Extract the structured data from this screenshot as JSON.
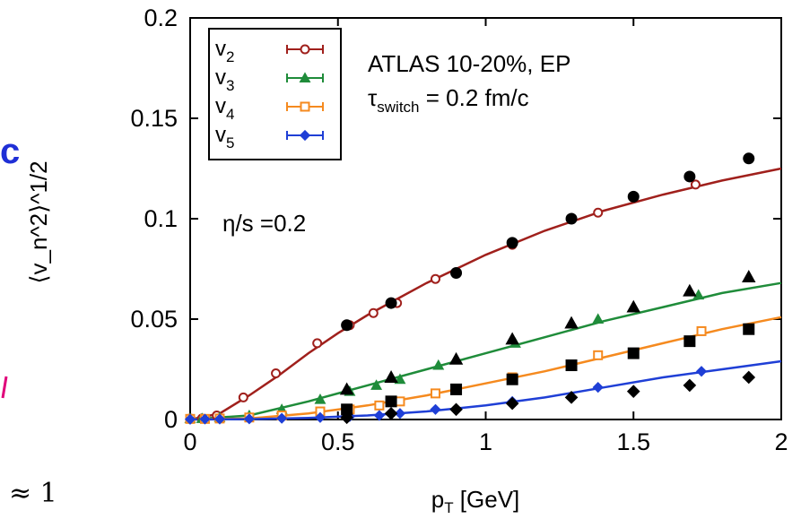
{
  "page": {
    "edge_text_left": "c",
    "edge_text_bottom": "≈ 1",
    "edge_mark_color": "#e0007a",
    "edge_text_color": "#1f2fd6"
  },
  "chart_data": {
    "type": "line",
    "title": "",
    "xlabel": {
      "main": "p",
      "sub": "T",
      "rest": " [GeV]"
    },
    "ylabel": "⟨v_n^2⟩^1/2",
    "xlim": [
      0,
      2
    ],
    "ylim": [
      0,
      0.2
    ],
    "x_ticks": [
      {
        "v": 0,
        "label": "0"
      },
      {
        "v": 0.5,
        "label": "0.5"
      },
      {
        "v": 1,
        "label": "1"
      },
      {
        "v": 1.5,
        "label": "1.5"
      },
      {
        "v": 2,
        "label": "2"
      }
    ],
    "y_ticks": [
      {
        "v": 0,
        "label": "0"
      },
      {
        "v": 0.05,
        "label": "0.05"
      },
      {
        "v": 0.1,
        "label": "0.1"
      },
      {
        "v": 0.15,
        "label": "0.15"
      },
      {
        "v": 0.2,
        "label": "0.2"
      }
    ],
    "grid": false,
    "legend": {
      "placement": "top-left",
      "text_parts": {
        "v2": {
          "main": "v",
          "sub": "2"
        },
        "v3": {
          "main": "v",
          "sub": "3"
        },
        "v4": {
          "main": "v",
          "sub": "4"
        },
        "v5": {
          "main": "v",
          "sub": "5"
        }
      }
    },
    "annotations": {
      "experiment": "ATLAS 10-20%, EP",
      "tau_main": "τ",
      "tau_sub": "switch",
      "tau_rest": " = 0.2 fm/c",
      "viscosity": "η/s =0.2"
    },
    "series": [
      {
        "name": "v2",
        "color": "#a0201c",
        "marker": "circle-open",
        "x": [
          0,
          0.04,
          0.09,
          0.18,
          0.29,
          0.43,
          0.54,
          0.62,
          0.7,
          0.83,
          1.09,
          1.38,
          1.71
        ],
        "y": [
          0.0005,
          0.0005,
          0.002,
          0.011,
          0.023,
          0.038,
          0.047,
          0.053,
          0.058,
          0.07,
          0.087,
          0.103,
          0.117
        ],
        "curve_x": [
          0,
          0.1,
          0.2,
          0.3,
          0.4,
          0.5,
          0.6,
          0.7,
          0.8,
          0.9,
          1.0,
          1.2,
          1.4,
          1.6,
          1.8,
          2.0
        ],
        "curve_y": [
          0.0,
          0.003,
          0.012,
          0.022,
          0.033,
          0.043,
          0.052,
          0.06,
          0.068,
          0.075,
          0.082,
          0.094,
          0.104,
          0.112,
          0.119,
          0.125
        ]
      },
      {
        "name": "v3",
        "color": "#1f8c3a",
        "marker": "triangle-filled",
        "x": [
          0,
          0.04,
          0.1,
          0.2,
          0.31,
          0.44,
          0.54,
          0.63,
          0.71,
          0.84,
          1.1,
          1.38,
          1.72
        ],
        "y": [
          0.0005,
          0.0005,
          0.001,
          0.002,
          0.005,
          0.01,
          0.014,
          0.017,
          0.02,
          0.027,
          0.038,
          0.05,
          0.062
        ],
        "curve_x": [
          0,
          0.2,
          0.4,
          0.6,
          0.8,
          1.0,
          1.2,
          1.4,
          1.6,
          1.8,
          2.0
        ],
        "curve_y": [
          0.0,
          0.002,
          0.009,
          0.017,
          0.025,
          0.033,
          0.041,
          0.049,
          0.056,
          0.063,
          0.068
        ]
      },
      {
        "name": "v4",
        "color": "#f58a1f",
        "marker": "square-open",
        "x": [
          0,
          0.05,
          0.1,
          0.2,
          0.31,
          0.44,
          0.54,
          0.64,
          0.71,
          0.83,
          1.09,
          1.38,
          1.73
        ],
        "y": [
          0.0003,
          0.0003,
          0.0005,
          0.001,
          0.002,
          0.004,
          0.005,
          0.007,
          0.009,
          0.013,
          0.021,
          0.032,
          0.044
        ],
        "curve_x": [
          0,
          0.2,
          0.4,
          0.6,
          0.8,
          1.0,
          1.2,
          1.4,
          1.6,
          1.8,
          2.0
        ],
        "curve_y": [
          0.0,
          0.0005,
          0.003,
          0.007,
          0.012,
          0.018,
          0.024,
          0.031,
          0.038,
          0.045,
          0.051
        ]
      },
      {
        "name": "v5",
        "color": "#1f3fd6",
        "marker": "diamond-filled",
        "x": [
          0,
          0.05,
          0.1,
          0.2,
          0.31,
          0.44,
          0.54,
          0.64,
          0.71,
          0.83,
          1.09,
          1.38,
          1.73
        ],
        "y": [
          0.0001,
          0.0002,
          0.0002,
          0.0003,
          0.0006,
          0.001,
          0.0015,
          0.002,
          0.003,
          0.005,
          0.009,
          0.016,
          0.024
        ],
        "curve_x": [
          0,
          0.2,
          0.4,
          0.6,
          0.8,
          1.0,
          1.2,
          1.4,
          1.6,
          1.8,
          2.0
        ],
        "curve_y": [
          0.0,
          0.0002,
          0.0008,
          0.002,
          0.004,
          0.007,
          0.011,
          0.016,
          0.021,
          0.025,
          0.029
        ]
      }
    ],
    "atlas_data": [
      {
        "name": "v2",
        "marker": "circle",
        "x": [
          0.53,
          0.68,
          0.9,
          1.09,
          1.29,
          1.5,
          1.69,
          1.89
        ],
        "y": [
          0.047,
          0.058,
          0.073,
          0.088,
          0.1,
          0.111,
          0.121,
          0.13
        ]
      },
      {
        "name": "v3",
        "marker": "triangle",
        "x": [
          0.53,
          0.68,
          0.9,
          1.09,
          1.29,
          1.5,
          1.69,
          1.89
        ],
        "y": [
          0.015,
          0.021,
          0.03,
          0.04,
          0.048,
          0.056,
          0.064,
          0.071
        ]
      },
      {
        "name": "v4",
        "marker": "square",
        "x": [
          0.53,
          0.68,
          0.9,
          1.09,
          1.29,
          1.5,
          1.69,
          1.89
        ],
        "y": [
          0.005,
          0.009,
          0.015,
          0.02,
          0.027,
          0.033,
          0.039,
          0.045
        ]
      },
      {
        "name": "v5",
        "marker": "diamond",
        "x": [
          0.53,
          0.68,
          0.9,
          1.09,
          1.29,
          1.5,
          1.69,
          1.89
        ],
        "y": [
          0.001,
          0.003,
          0.005,
          0.008,
          0.011,
          0.014,
          0.017,
          0.021
        ]
      }
    ]
  }
}
